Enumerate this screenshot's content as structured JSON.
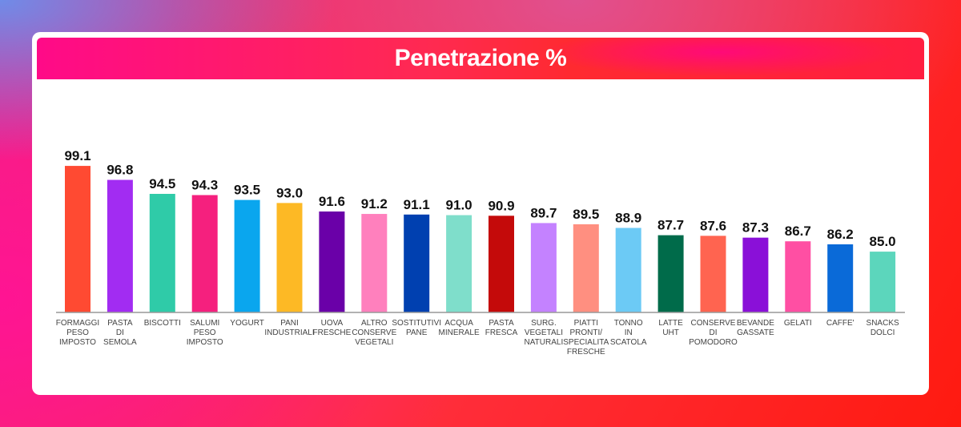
{
  "chart_data": {
    "type": "bar",
    "title": "Penetrazione %",
    "categories": [
      [
        "FORMAGGI",
        "PESO",
        "IMPOSTO"
      ],
      [
        "PASTA",
        "DI",
        "SEMOLA"
      ],
      [
        "BISCOTTI"
      ],
      [
        "SALUMI",
        "PESO",
        "IMPOSTO"
      ],
      [
        "YOGURT"
      ],
      [
        "PANI",
        "INDUSTRIALI"
      ],
      [
        "UOVA",
        "FRESCHE"
      ],
      [
        "ALTRO",
        "CONSERVE",
        "VEGETALI"
      ],
      [
        "SOSTITUTIVI",
        "PANE"
      ],
      [
        "ACQUA",
        "MINERALE"
      ],
      [
        "PASTA",
        "FRESCA"
      ],
      [
        "SURG.",
        "VEGETALI",
        "NATURALI"
      ],
      [
        "PIATTI",
        "PRONTI/",
        "SPECIALITA",
        "FRESCHE"
      ],
      [
        "TONNO",
        "IN",
        "SCATOLA"
      ],
      [
        "LATTE",
        "UHT"
      ],
      [
        "CONSERVE",
        "DI",
        "POMODORO"
      ],
      [
        "BEVANDE",
        "GASSATE"
      ],
      [
        "GELATI"
      ],
      [
        "CAFFE'"
      ],
      [
        "SNACKS",
        "DOLCI"
      ]
    ],
    "values": [
      99.1,
      96.8,
      94.5,
      94.3,
      93.5,
      93.0,
      91.6,
      91.2,
      91.1,
      91.0,
      90.9,
      89.7,
      89.5,
      88.9,
      87.7,
      87.6,
      87.3,
      86.7,
      86.2,
      85.0
    ],
    "value_labels": [
      "99.1",
      "96.8",
      "94.5",
      "94.3",
      "93.5",
      "93.0",
      "91.6",
      "91.2",
      "91.1",
      "91.0",
      "90.9",
      "89.7",
      "89.5",
      "88.9",
      "87.7",
      "87.6",
      "87.3",
      "86.7",
      "86.2",
      "85.0"
    ],
    "colors": [
      "#ff4a32",
      "#a22cf2",
      "#2fcba8",
      "#f5207e",
      "#0aa6ee",
      "#fdb925",
      "#6a00a8",
      "#ff80bd",
      "#0040b0",
      "#7fdecb",
      "#c40a0a",
      "#c482ff",
      "#ff8f80",
      "#6ccaf5",
      "#006b4a",
      "#ff6450",
      "#8a10d8",
      "#ff4fa3",
      "#0a6ad8",
      "#5cd6bc"
    ],
    "ylim": [
      75,
      100
    ],
    "grid": false,
    "legend": "none"
  }
}
